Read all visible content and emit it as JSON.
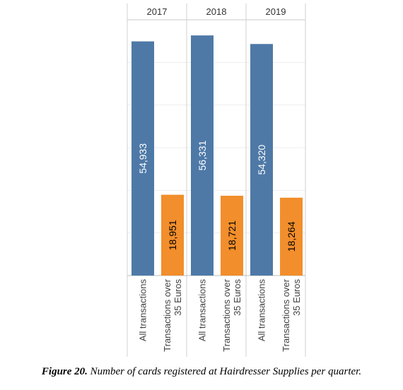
{
  "chart_data": {
    "type": "bar",
    "panels": [
      "2017",
      "2018",
      "2019"
    ],
    "categories": [
      "All transactions",
      "Transactions over 35 Euros"
    ],
    "category_lines": [
      [
        "All transactions"
      ],
      [
        "Transactions over",
        "35 Euros"
      ]
    ],
    "values": [
      [
        54933,
        18951
      ],
      [
        56331,
        18721
      ],
      [
        54320,
        18264
      ]
    ],
    "labels": [
      [
        "54,933",
        "18,951"
      ],
      [
        "56,331",
        "18,721"
      ],
      [
        "54,320",
        "18,264"
      ]
    ],
    "colors": [
      "#4e79a7",
      "#f28e2b"
    ],
    "ylim": [
      0,
      60000
    ],
    "grid": true
  },
  "caption": {
    "figure": "Figure 20.",
    "text": " Number of cards registered at Hairdresser Supplies per quarter."
  }
}
